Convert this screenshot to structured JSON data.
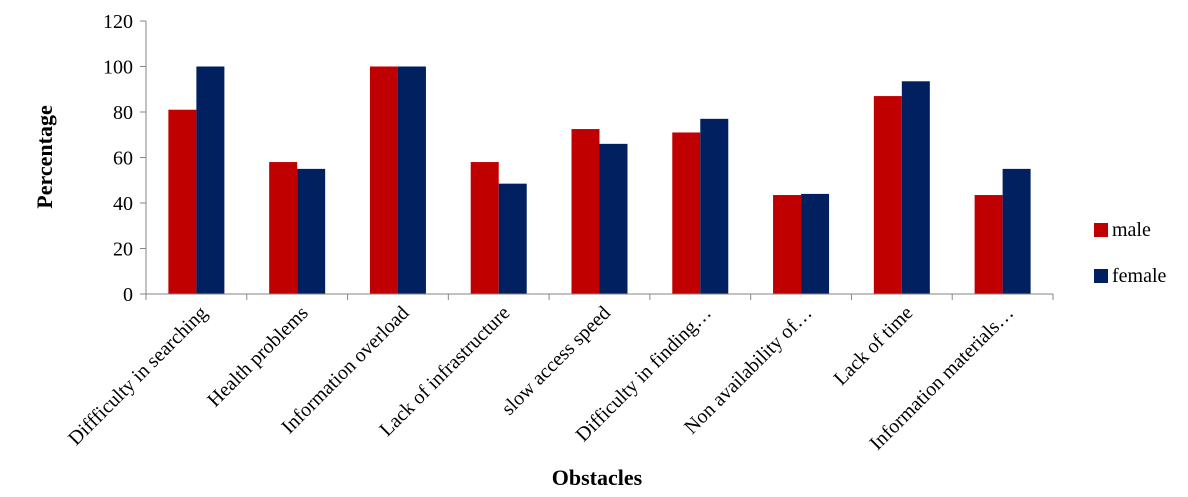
{
  "chart_data": {
    "type": "bar",
    "title": "",
    "xlabel": "Obstacles",
    "ylabel": "Percentage",
    "ylim": [
      0,
      120
    ],
    "yticks": [
      "0",
      "20",
      "40",
      "60",
      "80",
      "100",
      "120"
    ],
    "grid": false,
    "legend_position": "right",
    "categories": [
      "Diffficulty in searching",
      "Health problems",
      "Information overload",
      "Lack of infrastructure",
      "slow access speed",
      "Difficulty in finding…",
      "Non availability of…",
      "Lack of time",
      "Information materials…"
    ],
    "series": [
      {
        "name": "male",
        "color": "#C00000",
        "values": [
          81,
          58,
          100,
          58,
          72.5,
          71,
          43.5,
          87,
          43.5
        ]
      },
      {
        "name": "female",
        "color": "#002060",
        "values": [
          100,
          55,
          100,
          48.5,
          66,
          77,
          44,
          93.5,
          55
        ]
      }
    ]
  }
}
